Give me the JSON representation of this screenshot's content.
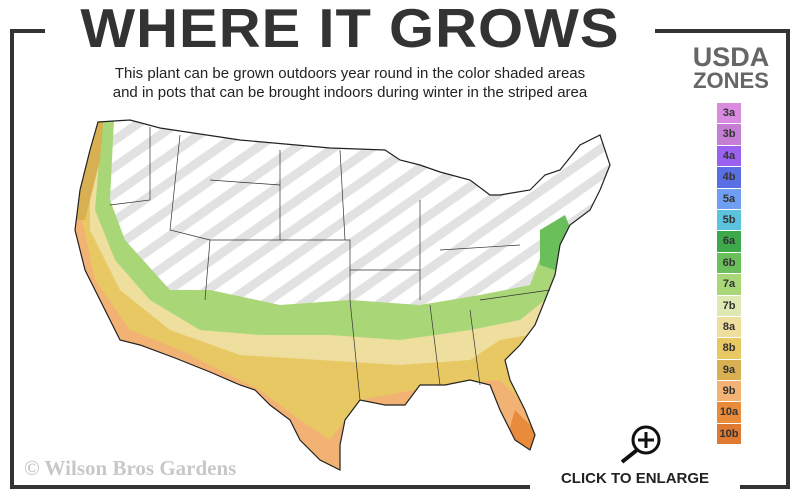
{
  "header": {
    "title": "WHERE IT GROWS",
    "subtitle_line1": "This plant can be grown outdoors year round in the color shaded areas",
    "subtitle_line2": "and in pots that can be brought indoors during winter in the striped area"
  },
  "legend": {
    "title_line1": "USDA",
    "title_line2": "ZONES",
    "zones": [
      {
        "label": "3a",
        "color": "#d98be0"
      },
      {
        "label": "3b",
        "color": "#c57ed4"
      },
      {
        "label": "4a",
        "color": "#9a62ee"
      },
      {
        "label": "4b",
        "color": "#5b6fe4"
      },
      {
        "label": "5a",
        "color": "#6f9ef2"
      },
      {
        "label": "5b",
        "color": "#5cc3df"
      },
      {
        "label": "6a",
        "color": "#3ea94b"
      },
      {
        "label": "6b",
        "color": "#6bbf5a"
      },
      {
        "label": "7a",
        "color": "#a9d778"
      },
      {
        "label": "7b",
        "color": "#dde8b2"
      },
      {
        "label": "8a",
        "color": "#eedf9f"
      },
      {
        "label": "8b",
        "color": "#e8c862"
      },
      {
        "label": "9a",
        "color": "#d8b052"
      },
      {
        "label": "9b",
        "color": "#f1b274"
      },
      {
        "label": "10a",
        "color": "#e88b3a"
      },
      {
        "label": "10b",
        "color": "#df7a32"
      }
    ]
  },
  "footer": {
    "copyright": "© Wilson Bros Gardens",
    "enlarge_label": "CLICK TO ENLARGE",
    "enlarge_icon": "zoom-in-icon"
  }
}
